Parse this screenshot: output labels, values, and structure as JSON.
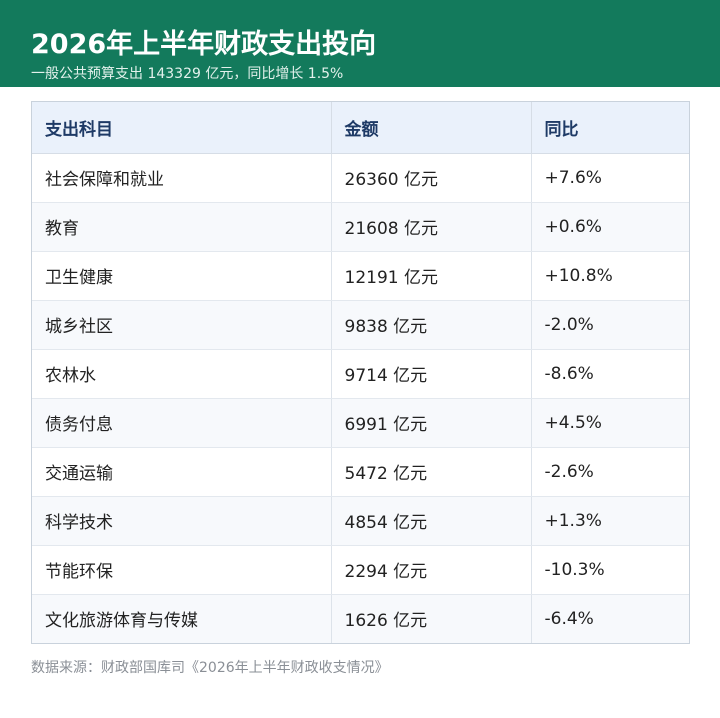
{
  "header": {
    "title": "2026年上半年财政支出投向",
    "subtitle": "一般公共预算支出 143329 亿元，同比增长 1.5%"
  },
  "table": {
    "columns": [
      "支出科目",
      "金额",
      "同比"
    ],
    "rows": [
      {
        "item": "社会保障和就业",
        "amount": "26360 亿元",
        "yoy": "+7.6%"
      },
      {
        "item": "教育",
        "amount": "21608 亿元",
        "yoy": "+0.6%"
      },
      {
        "item": "卫生健康",
        "amount": "12191 亿元",
        "yoy": "+10.8%"
      },
      {
        "item": "城乡社区",
        "amount": "9838 亿元",
        "yoy": "-2.0%"
      },
      {
        "item": "农林水",
        "amount": "9714 亿元",
        "yoy": "-8.6%"
      },
      {
        "item": "债务付息",
        "amount": "6991 亿元",
        "yoy": "+4.5%"
      },
      {
        "item": "交通运输",
        "amount": "5472 亿元",
        "yoy": "-2.6%"
      },
      {
        "item": "科学技术",
        "amount": "4854 亿元",
        "yoy": "+1.3%"
      },
      {
        "item": "节能环保",
        "amount": "2294 亿元",
        "yoy": "-10.3%"
      },
      {
        "item": "文化旅游体育与传媒",
        "amount": "1626 亿元",
        "yoy": "-6.4%"
      }
    ]
  },
  "footer": {
    "source": "数据来源：财政部国库司《2026年上半年财政收支情况》"
  },
  "colors": {
    "header_bg": "#137a5c",
    "table_header_bg": "#eaf1fb",
    "table_header_text": "#1e3a66",
    "zebra_row_bg": "#f7f9fc"
  }
}
